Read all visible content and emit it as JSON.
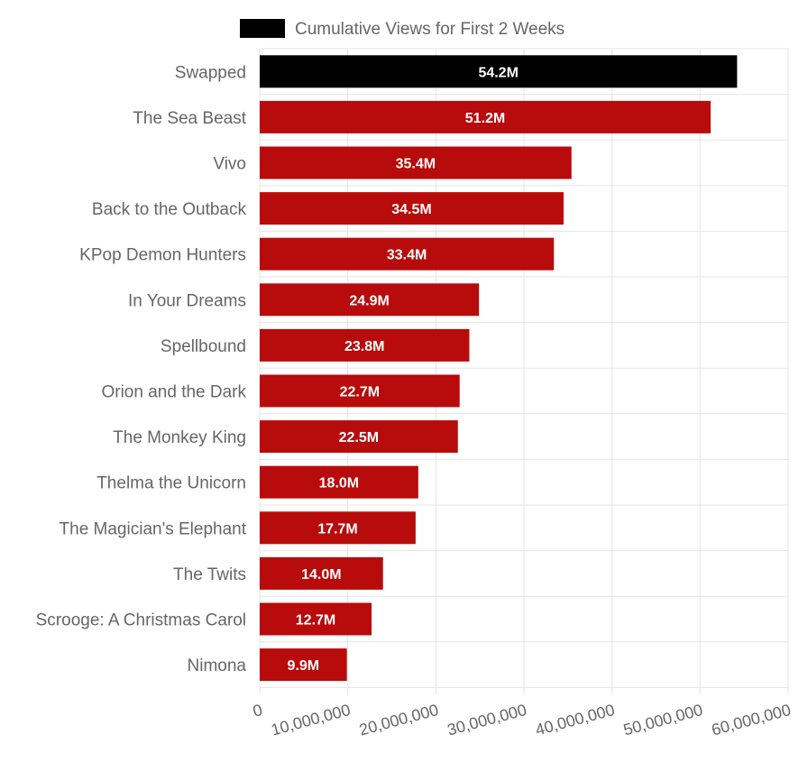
{
  "chart_data": {
    "type": "bar",
    "orientation": "horizontal",
    "categories": [
      "Swapped",
      "The Sea Beast",
      "Vivo",
      "Back to the Outback",
      "KPop Demon Hunters",
      "In Your Dreams",
      "Spellbound",
      "Orion and the Dark",
      "The Monkey King",
      "Thelma the Unicorn",
      "The Magician's Elephant",
      "The Twits",
      "Scrooge: A Christmas Carol",
      "Nimona"
    ],
    "series": [
      {
        "name": "Cumulative Views for First 2 Weeks",
        "values": [
          54200000,
          51200000,
          35400000,
          34500000,
          33400000,
          24900000,
          23800000,
          22700000,
          22500000,
          18000000,
          17700000,
          14000000,
          12700000,
          9900000
        ],
        "data_labels": [
          "54.2M",
          "51.2M",
          "35.4M",
          "34.5M",
          "33.4M",
          "24.9M",
          "23.8M",
          "22.7M",
          "22.5M",
          "18.0M",
          "17.7M",
          "14.0M",
          "12.7M",
          "9.9M"
        ]
      }
    ],
    "xlim": [
      0,
      60000000
    ],
    "x_ticks": [
      0,
      10000000,
      20000000,
      30000000,
      40000000,
      50000000,
      60000000
    ],
    "x_tick_labels": [
      "0",
      "10,000,000",
      "20,000,000",
      "30,000,000",
      "40,000,000",
      "50,000,000",
      "60,000,000"
    ],
    "legend_position": "top",
    "grid": true,
    "colors": {
      "highlight_bar": "#000000",
      "bar": "#b80b0b",
      "legend_swatch": "#000000",
      "grid": "#e5e5e5",
      "label_text": "#666666"
    }
  }
}
